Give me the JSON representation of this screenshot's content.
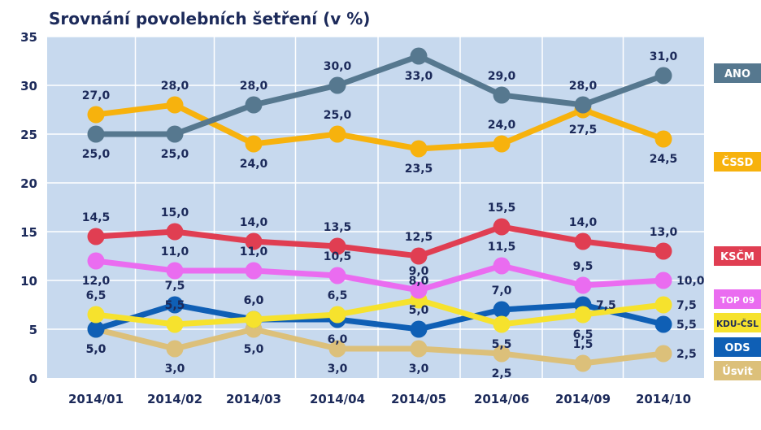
{
  "chart_data": {
    "type": "line",
    "title": "Srovnání povolebních šetření (v %)",
    "categories": [
      "2014/01",
      "2014/02",
      "2014/03",
      "2014/04",
      "2014/05",
      "2014/06",
      "2014/09",
      "2014/10"
    ],
    "ylim": [
      0,
      35
    ],
    "yticks": [
      "0",
      "5",
      "10",
      "15",
      "20",
      "25",
      "30",
      "35"
    ],
    "grid": true,
    "legend_placement": "right",
    "series": [
      {
        "name": "ANO",
        "color": "#56788f",
        "values": [
          25.0,
          25.0,
          28.0,
          30.0,
          33.0,
          29.0,
          28.0,
          31.0
        ],
        "labels": [
          "25,0",
          "25,0",
          "28,0",
          "30,0",
          "33,0",
          "29,0",
          "28,0",
          "31,0"
        ],
        "label_pos": [
          "below",
          "below",
          "above",
          "above",
          "below",
          "above",
          "above",
          "above"
        ]
      },
      {
        "name": "ČSSD",
        "color": "#f7b20d",
        "values": [
          27.0,
          28.0,
          24.0,
          25.0,
          23.5,
          24.0,
          27.5,
          24.5
        ],
        "labels": [
          "27,0",
          "28,0",
          "24,0",
          "25,0",
          "23,5",
          "24,0",
          "27,5",
          "24,5"
        ],
        "label_pos": [
          "above",
          "above",
          "below",
          "above",
          "below",
          "above",
          "below",
          "below"
        ]
      },
      {
        "name": "KSČM",
        "color": "#e03e52",
        "values": [
          14.5,
          15.0,
          14.0,
          13.5,
          12.5,
          15.5,
          14.0,
          13.0
        ],
        "labels": [
          "14,5",
          "15,0",
          "14,0",
          "13,5",
          "12,5",
          "15,5",
          "14,0",
          "13,0"
        ],
        "label_pos": [
          "above",
          "above",
          "above",
          "above",
          "above",
          "above",
          "above",
          "above"
        ]
      },
      {
        "name": "TOP 09",
        "color": "#ea6cf0",
        "values": [
          12.0,
          11.0,
          11.0,
          10.5,
          9.0,
          11.5,
          9.5,
          10.0
        ],
        "labels": [
          "12,0",
          "11,0",
          "11,0",
          "10,5",
          "9,0",
          "11,5",
          "9,5",
          "10,0"
        ],
        "label_pos": [
          "below",
          "above",
          "above",
          "above",
          "above",
          "above",
          "above",
          "right"
        ]
      },
      {
        "name": "KDU-ČSL",
        "color": "#f6e22d",
        "values": [
          6.5,
          5.5,
          6.0,
          6.5,
          8.0,
          5.5,
          6.5,
          7.5
        ],
        "labels": [
          "6,5",
          "5,5",
          "6,0",
          "6,5",
          "8,0",
          "5,5",
          "6,5",
          "7,5"
        ],
        "label_pos": [
          "above",
          "above",
          "above",
          "above",
          "above",
          "below",
          "below",
          "right"
        ]
      },
      {
        "name": "ODS",
        "color": "#0f5fb5",
        "values": [
          5.0,
          7.5,
          6.0,
          6.0,
          5.0,
          7.0,
          7.5,
          5.5
        ],
        "labels": [
          "5,0",
          "7,5",
          "6,0",
          "6,0",
          "5,0",
          "7,0",
          "7,5",
          "5,5"
        ],
        "label_pos": [
          "below",
          "above",
          "above",
          "below",
          "above",
          "above",
          "right",
          "right"
        ]
      },
      {
        "name": "Úsvit",
        "color": "#dcc07a",
        "values": [
          5.0,
          3.0,
          5.0,
          3.0,
          3.0,
          2.5,
          1.5,
          2.5
        ],
        "labels": [
          "5,0",
          "3,0",
          "5,0",
          "3,0",
          "3,0",
          "2,5",
          "1,5",
          "2,5"
        ],
        "label_pos": [
          "below",
          "below",
          "below",
          "below",
          "below",
          "below",
          "above",
          "right"
        ]
      }
    ],
    "legend": [
      {
        "name": "ANO",
        "color": "#56788f",
        "text_color": "#ffffff"
      },
      {
        "name": "ČSSD",
        "color": "#f7b20d",
        "text_color": "#ffffff"
      },
      {
        "name": "KSČM",
        "color": "#e03e52",
        "text_color": "#ffffff"
      },
      {
        "name": "TOP 09",
        "color": "#ea6cf0",
        "text_color": "#ffffff"
      },
      {
        "name": "KDU-ČSL",
        "color": "#f6e22d",
        "text_color": "#1c2a5a"
      },
      {
        "name": "ODS",
        "color": "#0f5fb5",
        "text_color": "#ffffff"
      },
      {
        "name": "Úsvit",
        "color": "#dcc07a",
        "text_color": "#ffffff"
      }
    ]
  }
}
